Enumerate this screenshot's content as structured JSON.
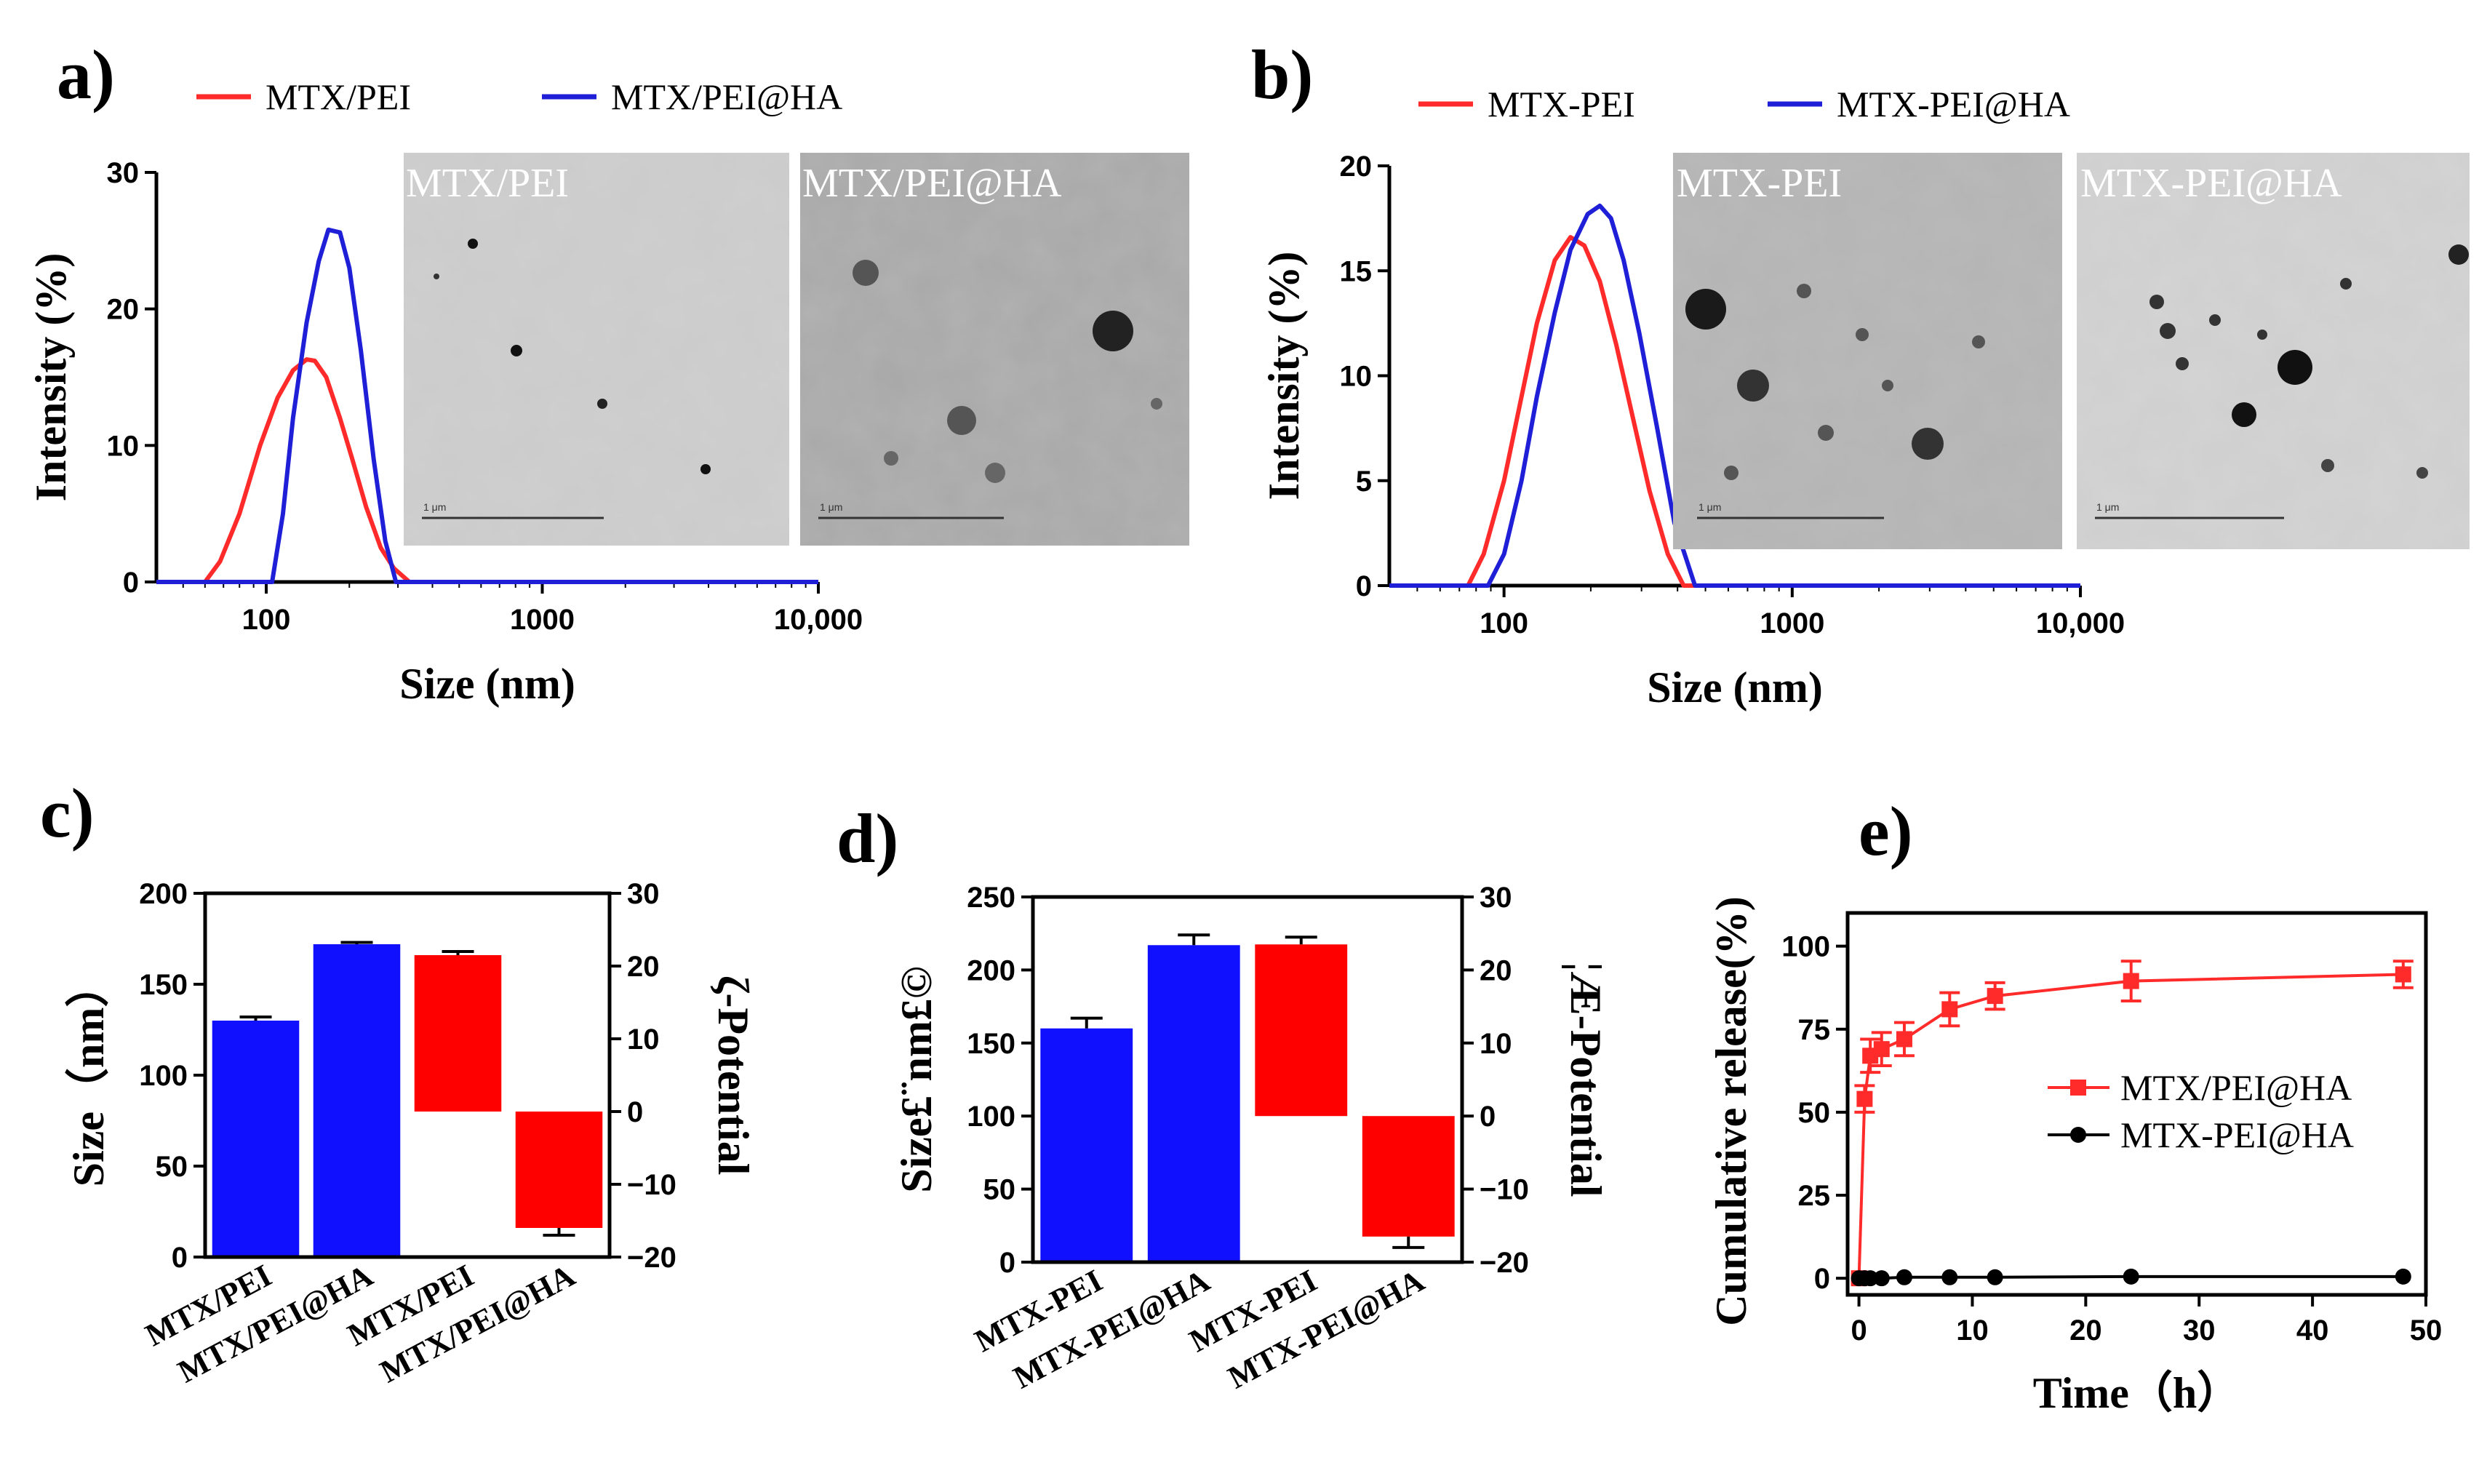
{
  "colors": {
    "red": "#ff2a2a",
    "blue": "#1f1fd8",
    "black": "#000000",
    "bar_red": "#ff0000",
    "bar_blue": "#1010ff"
  },
  "panels": {
    "a": {
      "letter": "a)"
    },
    "b": {
      "letter": "b)"
    },
    "c": {
      "letter": "c)"
    },
    "d": {
      "letter": "d)"
    },
    "e": {
      "letter": "e)"
    }
  },
  "chart_data": [
    {
      "id": "a",
      "type": "line",
      "xscale": "log",
      "xlabel": "Size (nm)",
      "ylabel": "Intensity (%)",
      "xlim": [
        40,
        10000
      ],
      "ylim": [
        0,
        30
      ],
      "xticks": [
        {
          "v": 100,
          "label": "100"
        },
        {
          "v": 1000,
          "label": "1000"
        },
        {
          "v": 10000,
          "label": "10,000"
        }
      ],
      "yticks": [
        {
          "v": 0,
          "label": "0"
        },
        {
          "v": 10,
          "label": "10"
        },
        {
          "v": 20,
          "label": "20"
        },
        {
          "v": 30,
          "label": "30"
        }
      ],
      "series": [
        {
          "name": "MTX/PEI",
          "color": "red",
          "x": [
            40,
            60,
            68,
            80,
            95,
            110,
            125,
            140,
            150,
            165,
            185,
            205,
            230,
            260,
            290,
            330,
            10000
          ],
          "y": [
            0,
            0,
            1.5,
            5,
            10,
            13.5,
            15.5,
            16.3,
            16.2,
            15,
            12,
            9,
            5.5,
            2.5,
            1,
            0,
            0
          ]
        },
        {
          "name": "MTX/PEI@HA",
          "color": "blue",
          "x": [
            40,
            105,
            115,
            125,
            140,
            155,
            168,
            185,
            200,
            220,
            245,
            270,
            295,
            10000
          ],
          "y": [
            0,
            0,
            5,
            12,
            19,
            23.5,
            25.8,
            25.6,
            23,
            17,
            9,
            3,
            0,
            0
          ]
        }
      ],
      "images": [
        {
          "label": "MTX/PEI",
          "scale": "1 μm"
        },
        {
          "label": "MTX/PEI@HA",
          "scale": "1 μm"
        }
      ]
    },
    {
      "id": "b",
      "type": "line",
      "xscale": "log",
      "xlabel": "Size (nm)",
      "ylabel": "Intensity (%)",
      "xlim": [
        40,
        10000
      ],
      "ylim": [
        0,
        20
      ],
      "xticks": [
        {
          "v": 100,
          "label": "100"
        },
        {
          "v": 1000,
          "label": "1000"
        },
        {
          "v": 10000,
          "label": "10,000"
        }
      ],
      "yticks": [
        {
          "v": 0,
          "label": "0"
        },
        {
          "v": 5,
          "label": "5"
        },
        {
          "v": 10,
          "label": "10"
        },
        {
          "v": 15,
          "label": "15"
        },
        {
          "v": 20,
          "label": "20"
        }
      ],
      "series": [
        {
          "name": "MTX-PEI",
          "color": "red",
          "x": [
            40,
            75,
            85,
            100,
            115,
            130,
            150,
            170,
            190,
            215,
            245,
            280,
            320,
            370,
            420,
            10000
          ],
          "y": [
            0,
            0,
            1.5,
            5,
            9,
            12.5,
            15.5,
            16.6,
            16.2,
            14.5,
            11.5,
            8,
            4.5,
            1.5,
            0,
            0
          ]
        },
        {
          "name": "MTX-PEI@HA",
          "color": "blue",
          "x": [
            40,
            88,
            100,
            115,
            130,
            150,
            170,
            195,
            215,
            235,
            260,
            295,
            340,
            390,
            460,
            10000
          ],
          "y": [
            0,
            0,
            1.5,
            5,
            9,
            13,
            16,
            17.7,
            18.1,
            17.5,
            15.5,
            12,
            7.5,
            3,
            0,
            0
          ]
        }
      ],
      "images": [
        {
          "label": "MTX-PEI",
          "scale": "1 μm"
        },
        {
          "label": "MTX-PEI@HA",
          "scale": "1 μm"
        }
      ]
    },
    {
      "id": "c",
      "type": "bar",
      "ylabel": "Size（nm）",
      "y2label": "ζ-Potential",
      "ylim": [
        0,
        200
      ],
      "y2lim": [
        -20,
        30
      ],
      "yticks": [
        {
          "v": 0,
          "label": "0"
        },
        {
          "v": 50,
          "label": "50"
        },
        {
          "v": 100,
          "label": "100"
        },
        {
          "v": 150,
          "label": "150"
        },
        {
          "v": 200,
          "label": "200"
        }
      ],
      "y2ticks": [
        {
          "v": -20,
          "label": "−20"
        },
        {
          "v": -10,
          "label": "−10"
        },
        {
          "v": 0,
          "label": "0"
        },
        {
          "v": 10,
          "label": "10"
        },
        {
          "v": 20,
          "label": "20"
        },
        {
          "v": 30,
          "label": "30"
        }
      ],
      "categories": [
        "MTX/PEI",
        "MTX/PEI@HA",
        "MTX/PEI",
        "MTX/PEI@HA"
      ],
      "bars": [
        {
          "axis": "left",
          "value": 130,
          "err": 2,
          "color": "bar_blue"
        },
        {
          "axis": "left",
          "value": 172,
          "err": 1,
          "color": "bar_blue"
        },
        {
          "axis": "right",
          "value": 21.5,
          "err": 0.5,
          "color": "bar_red"
        },
        {
          "axis": "right",
          "value": -16,
          "err": 1,
          "color": "bar_red"
        }
      ]
    },
    {
      "id": "d",
      "type": "bar",
      "ylabel": "Size£¨nm£©",
      "y2label": "¦Æ-Potential",
      "ylim": [
        0,
        250
      ],
      "y2lim": [
        -20,
        30
      ],
      "yticks": [
        {
          "v": 0,
          "label": "0"
        },
        {
          "v": 50,
          "label": "50"
        },
        {
          "v": 100,
          "label": "100"
        },
        {
          "v": 150,
          "label": "150"
        },
        {
          "v": 200,
          "label": "200"
        },
        {
          "v": 250,
          "label": "250"
        }
      ],
      "y2ticks": [
        {
          "v": -20,
          "label": "−20"
        },
        {
          "v": -10,
          "label": "−10"
        },
        {
          "v": 0,
          "label": "0"
        },
        {
          "v": 10,
          "label": "10"
        },
        {
          "v": 20,
          "label": "20"
        },
        {
          "v": 30,
          "label": "30"
        }
      ],
      "categories": [
        "MTX-PEI",
        "MTX-PEI@HA",
        "MTX-PEI",
        "MTX-PEI@HA"
      ],
      "bars": [
        {
          "axis": "left",
          "value": 160,
          "err": 7,
          "color": "bar_blue"
        },
        {
          "axis": "left",
          "value": 217,
          "err": 7,
          "color": "bar_blue"
        },
        {
          "axis": "right",
          "value": 23.5,
          "err": 1,
          "color": "bar_red"
        },
        {
          "axis": "right",
          "value": -16.5,
          "err": 1.5,
          "color": "bar_red"
        }
      ]
    },
    {
      "id": "e",
      "type": "line",
      "xlabel": "Time（h）",
      "ylabel": "Cumulative release(%)",
      "xlim": [
        -1,
        50
      ],
      "ylim": [
        -5,
        110
      ],
      "xticks": [
        {
          "v": 0,
          "label": "0"
        },
        {
          "v": 10,
          "label": "10"
        },
        {
          "v": 20,
          "label": "20"
        },
        {
          "v": 30,
          "label": "30"
        },
        {
          "v": 40,
          "label": "40"
        },
        {
          "v": 50,
          "label": "50"
        }
      ],
      "yticks": [
        {
          "v": 0,
          "label": "0"
        },
        {
          "v": 25,
          "label": "25"
        },
        {
          "v": 50,
          "label": "50"
        },
        {
          "v": 75,
          "label": "75"
        },
        {
          "v": 100,
          "label": "100"
        }
      ],
      "series": [
        {
          "name": "MTX/PEI@HA",
          "color": "red",
          "marker": "square",
          "x": [
            0,
            0.5,
            1,
            2,
            4,
            8,
            12,
            24,
            48
          ],
          "y": [
            0,
            54,
            67,
            69,
            72,
            81,
            85,
            89.5,
            91.5
          ],
          "err": [
            0,
            4,
            5,
            5,
            5,
            5,
            4,
            6,
            4
          ]
        },
        {
          "name": "MTX-PEI@HA",
          "color": "black",
          "marker": "circle",
          "x": [
            0,
            0.5,
            1,
            2,
            4,
            8,
            12,
            24,
            48
          ],
          "y": [
            0,
            0,
            0,
            0,
            0.3,
            0.3,
            0.3,
            0.5,
            0.5
          ],
          "err": [
            0,
            0,
            0,
            0,
            0,
            0,
            0,
            0,
            0
          ]
        }
      ]
    }
  ]
}
